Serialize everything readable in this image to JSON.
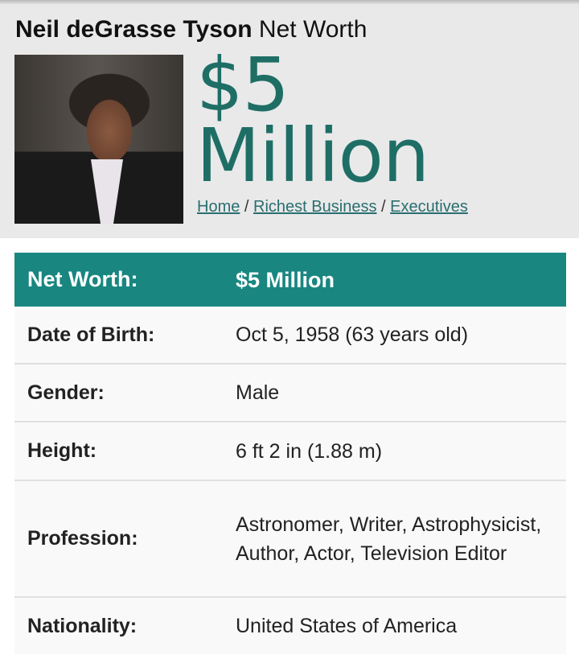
{
  "header": {
    "name": "Neil deGrasse Tyson",
    "suffix": "Net Worth"
  },
  "hero": {
    "amount_line1": "$5",
    "amount_line2": "Million",
    "photo_alt": "Neil deGrasse Tyson"
  },
  "breadcrumb": [
    {
      "label": "Home"
    },
    {
      "label": "Richest Business"
    },
    {
      "label": "Executives"
    }
  ],
  "breadcrumb_sep": "/",
  "table": {
    "rows": [
      {
        "label": "Net Worth:",
        "value": "$5 Million"
      },
      {
        "label": "Date of Birth:",
        "value": "Oct 5, 1958 (63 years old)"
      },
      {
        "label": "Gender:",
        "value": "Male"
      },
      {
        "label": "Height:",
        "value": "6 ft 2 in (1.88 m)"
      },
      {
        "label": "Profession:",
        "value": "Astronomer, Writer, Astrophysicist, Author, Actor, Television Editor"
      },
      {
        "label": "Nationality:",
        "value": "United States of America"
      }
    ]
  },
  "colors": {
    "accent": "#198680",
    "amount": "#1e6e66",
    "link": "#2a6e70",
    "hero_bg": "#e9e9e9"
  }
}
